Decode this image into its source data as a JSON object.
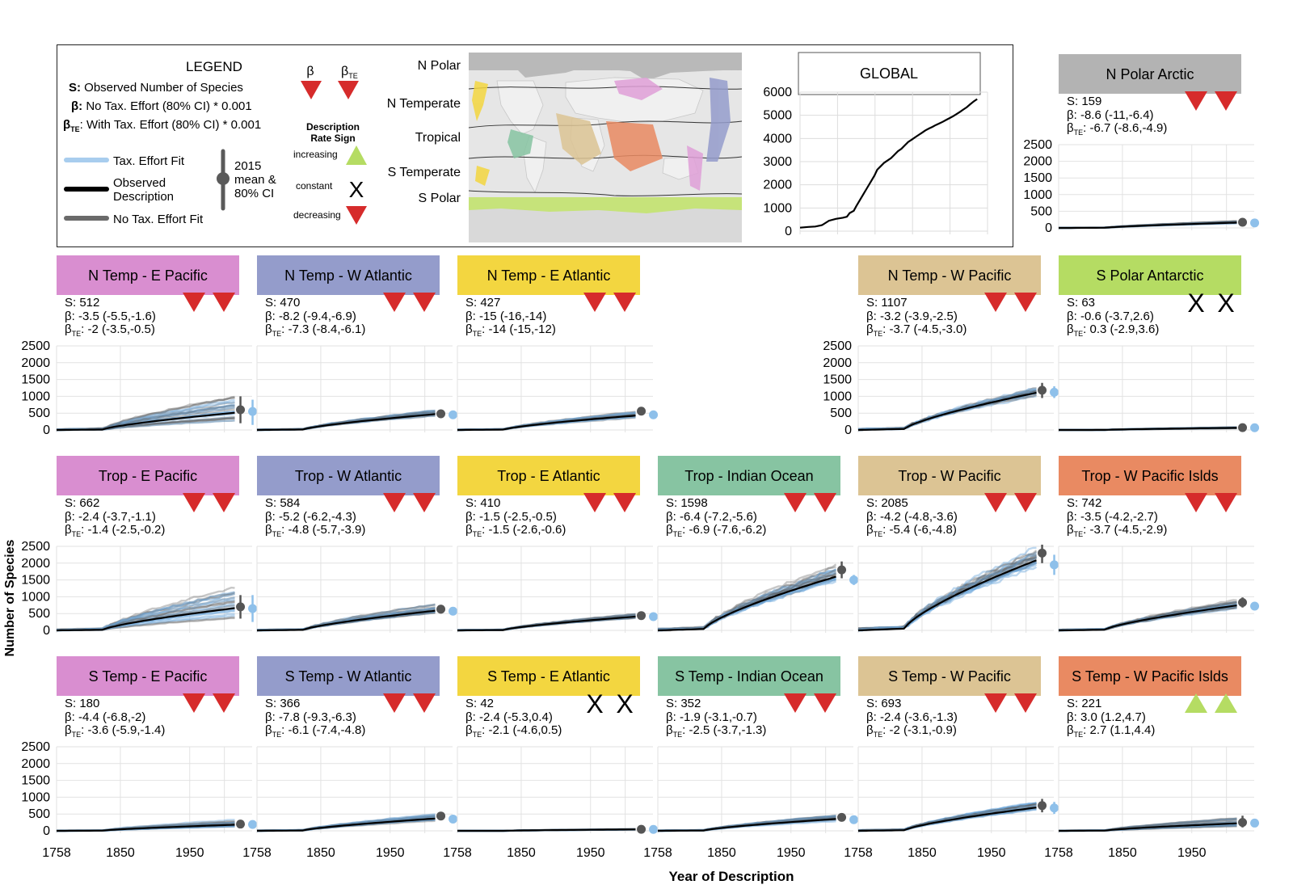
{
  "figure": {
    "ylabel": "Number of Species",
    "xlabel": "Year of Description"
  },
  "legend": {
    "title": "LEGEND",
    "s_prefix": "S:",
    "s_text": " Observed Number of Species",
    "beta_prefix": "β:",
    "beta_text": " No Tax. Effort (80% CI) * 0.001",
    "bte_prefix": "β",
    "bte_sub": "TE",
    "bte_text": ": With Tax. Effort (80% CI) * 0.001",
    "tax_fit": "Tax. Effort Fit",
    "observed_1": "Observed",
    "observed_2": "Description",
    "no_tax_fit": "No Tax. Effort Fit",
    "mean_1": "2015",
    "mean_2": "mean &",
    "mean_3": "80% CI",
    "beta_symbol": "β",
    "bte_symbol": "β",
    "sign_title_1": "Description",
    "sign_title_2": "Rate Sign",
    "increasing": "increasing",
    "constant": "constant",
    "decreasing": "decreasing",
    "constant_mark": "X",
    "colors": {
      "tax_fit": "#a8cdee",
      "observed": "#000000",
      "no_tax_fit": "#6a6a6a"
    }
  },
  "map": {
    "labels": [
      "N Polar",
      "N Temperate",
      "Tropical",
      "S Temperate",
      "S Polar"
    ]
  },
  "global": {
    "title": "GLOBAL",
    "chart_data": {
      "type": "line",
      "ylim": [
        0,
        6000
      ],
      "yticks": [
        0,
        1000,
        2000,
        3000,
        4000,
        5000,
        6000
      ],
      "x": [
        1758,
        1770,
        1780,
        1790,
        1800,
        1810,
        1820,
        1826,
        1830,
        1836,
        1840,
        1845,
        1850,
        1855,
        1860,
        1866,
        1870,
        1875,
        1880,
        1885,
        1890,
        1895,
        1900,
        1905,
        1910,
        1915,
        1920,
        1925,
        1930,
        1935,
        1940,
        1945,
        1950,
        1955,
        1960,
        1965,
        1970,
        1975,
        1980,
        1985,
        1990,
        1995,
        2000,
        2005,
        2010,
        2015
      ],
      "y": [
        150,
        180,
        200,
        260,
        450,
        530,
        580,
        620,
        780,
        880,
        1100,
        1350,
        1600,
        1850,
        2100,
        2400,
        2650,
        2800,
        2950,
        3050,
        3150,
        3300,
        3450,
        3550,
        3700,
        3850,
        3950,
        4050,
        4150,
        4250,
        4350,
        4430,
        4500,
        4580,
        4650,
        4720,
        4800,
        4880,
        4960,
        5050,
        5150,
        5250,
        5350,
        5480,
        5600,
        5700
      ]
    }
  },
  "panel_axes": {
    "x_range": [
      1758,
      2040
    ],
    "x_ticks": [
      1758,
      1850,
      1950
    ],
    "y_range": [
      0,
      2500
    ],
    "y_ticks": [
      0,
      500,
      1000,
      1500,
      2000,
      2500
    ]
  },
  "signs": {
    "decreasing": "#d62b2b",
    "increasing": "#b5dc63"
  },
  "panels": [
    {
      "id": "npolar-arctic",
      "title": "N Polar Arctic",
      "color": "#b3b3b3",
      "row": 0,
      "col": 5,
      "S": "159",
      "beta": "-8.6 (-11,-6.4)",
      "bte": "-6.7 (-8.6,-4.9)",
      "sign": [
        "dec",
        "dec"
      ],
      "obs_final": 159,
      "spread": 0.6,
      "mean": 170,
      "ci": [
        140,
        200
      ],
      "te_mean": 150,
      "te_ci": [
        130,
        170
      ],
      "yaxis": true
    },
    {
      "id": "ntemp-epac",
      "title": "N Temp - E Pacific",
      "color": "#d98ed0",
      "row": 1,
      "col": 0,
      "S": "512",
      "beta": "-3.5 (-5.5,-1.6)",
      "bte": "-2 (-3.5,-0.5)",
      "sign": [
        "dec",
        "dec"
      ],
      "obs_final": 512,
      "spread": 2.5,
      "mean": 600,
      "ci": [
        200,
        1000
      ],
      "te_mean": 550,
      "te_ci": [
        150,
        900
      ],
      "yaxis": true
    },
    {
      "id": "ntemp-watl",
      "title": "N Temp - W Atlantic",
      "color": "#949ccb",
      "row": 1,
      "col": 1,
      "S": "470",
      "beta": "-8.2 (-9.4,-6.9)",
      "bte": "-7.3 (-8.4,-6.1)",
      "sign": [
        "dec",
        "dec"
      ],
      "obs_final": 470,
      "spread": 0.6,
      "mean": 480,
      "ci": [
        380,
        580
      ],
      "te_mean": 450,
      "te_ci": [
        400,
        500
      ],
      "yaxis": false
    },
    {
      "id": "ntemp-eatl",
      "title": "N Temp - E Atlantic",
      "color": "#f3d640",
      "row": 1,
      "col": 2,
      "S": "427",
      "beta": "-15 (-16,-14)",
      "bte": "-14 (-15,-12)",
      "sign": [
        "dec",
        "dec"
      ],
      "obs_final": 427,
      "spread": 0.65,
      "mean": 560,
      "ci": [
        480,
        650
      ],
      "te_mean": 450,
      "te_ci": [
        420,
        480
      ],
      "yaxis": false
    },
    {
      "id": "ntemp-wpac",
      "title": "N Temp - W Pacific",
      "color": "#dcc494",
      "row": 1,
      "col": 4,
      "S": "1107",
      "beta": "-3.2 (-3.9,-2.5)",
      "bte": "-3.7 (-4.5,-3.0)",
      "sign": [
        "dec",
        "dec"
      ],
      "obs_final": 1107,
      "spread": 0.35,
      "mean": 1180,
      "ci": [
        950,
        1400
      ],
      "te_mean": 1120,
      "te_ci": [
        950,
        1300
      ],
      "yaxis": true
    },
    {
      "id": "spolar-ant",
      "title": "S Polar Antarctic",
      "color": "#b5dc63",
      "row": 1,
      "col": 5,
      "S": "63",
      "beta": "-0.6 (-3.7,2.6)",
      "bte": "0.3 (-2.9,3.6)",
      "sign": [
        "con",
        "con"
      ],
      "obs_final": 63,
      "spread": 0.8,
      "mean": 70,
      "ci": [
        55,
        90
      ],
      "te_mean": 65,
      "te_ci": [
        50,
        80
      ],
      "yaxis": false
    },
    {
      "id": "trop-epac",
      "title": "Trop - E Pacific",
      "color": "#d98ed0",
      "row": 2,
      "col": 0,
      "S": "662",
      "beta": "-2.4 (-3.7,-1.1)",
      "bte": "-1.4 (-2.5,-0.2)",
      "sign": [
        "dec",
        "dec"
      ],
      "obs_final": 662,
      "spread": 2.2,
      "mean": 700,
      "ci": [
        350,
        1050
      ],
      "te_mean": 650,
      "te_ci": [
        250,
        1050
      ],
      "yaxis": true
    },
    {
      "id": "trop-watl",
      "title": "Trop - W Atlantic",
      "color": "#949ccb",
      "row": 2,
      "col": 1,
      "S": "584",
      "beta": "-5.2 (-6.2,-4.3)",
      "bte": "-4.8 (-5.7,-3.9)",
      "sign": [
        "dec",
        "dec"
      ],
      "obs_final": 584,
      "spread": 0.6,
      "mean": 630,
      "ci": [
        500,
        760
      ],
      "te_mean": 570,
      "te_ci": [
        480,
        660
      ],
      "yaxis": false
    },
    {
      "id": "trop-eatl",
      "title": "Trop - E Atlantic",
      "color": "#f3d640",
      "row": 2,
      "col": 2,
      "S": "410",
      "beta": "-1.5 (-2.5,-0.5)",
      "bte": "-1.5 (-2.6,-0.6)",
      "sign": [
        "dec",
        "dec"
      ],
      "obs_final": 410,
      "spread": 0.5,
      "mean": 440,
      "ci": [
        370,
        520
      ],
      "te_mean": 410,
      "te_ci": [
        360,
        460
      ],
      "yaxis": false
    },
    {
      "id": "trop-ind",
      "title": "Trop - Indian Ocean",
      "color": "#87c4a2",
      "row": 2,
      "col": 3,
      "S": "1598",
      "beta": "-6.4 (-7.2,-5.6)",
      "bte": "-6.9 (-7.6,-6.2)",
      "sign": [
        "dec",
        "dec"
      ],
      "obs_final": 1598,
      "spread": 0.45,
      "mean": 1800,
      "ci": [
        1550,
        2050
      ],
      "te_mean": 1500,
      "te_ci": [
        1350,
        1650
      ],
      "yaxis": false
    },
    {
      "id": "trop-wpac",
      "title": "Trop - W Pacific",
      "color": "#dcc494",
      "row": 2,
      "col": 4,
      "S": "2085",
      "beta": "-4.2 (-4.8,-3.6)",
      "bte": "-5.4 (-6,-4.8)",
      "sign": [
        "dec",
        "dec"
      ],
      "obs_final": 2085,
      "spread": 0.4,
      "mean": 2300,
      "ci": [
        2000,
        2550
      ],
      "te_mean": 1950,
      "te_ci": [
        1650,
        2250
      ],
      "yaxis": false
    },
    {
      "id": "trop-wpacisl",
      "title": "Trop - W Pacific Islds",
      "color": "#e98a62",
      "row": 2,
      "col": 5,
      "S": "742",
      "beta": "-3.5 (-4.2,-2.7)",
      "bte": "-3.7 (-4.5,-2.9)",
      "sign": [
        "dec",
        "dec"
      ],
      "obs_final": 742,
      "spread": 0.45,
      "mean": 830,
      "ci": [
        680,
        980
      ],
      "te_mean": 720,
      "te_ci": [
        600,
        840
      ],
      "yaxis": false
    },
    {
      "id": "stemp-epac",
      "title": "S Temp - E Pacific",
      "color": "#d98ed0",
      "row": 3,
      "col": 0,
      "S": "180",
      "beta": "-4.4 (-6.8,-2)",
      "bte": "-3.6 (-5.9,-1.4)",
      "sign": [
        "dec",
        "dec"
      ],
      "obs_final": 180,
      "spread": 1.5,
      "mean": 200,
      "ci": [
        100,
        320
      ],
      "te_mean": 190,
      "te_ci": [
        100,
        300
      ],
      "yaxis": true
    },
    {
      "id": "stemp-watl",
      "title": "S Temp - W Atlantic",
      "color": "#949ccb",
      "row": 3,
      "col": 1,
      "S": "366",
      "beta": "-7.8 (-9.3,-6.3)",
      "bte": "-6.1 (-7.4,-4.8)",
      "sign": [
        "dec",
        "dec"
      ],
      "obs_final": 366,
      "spread": 0.7,
      "mean": 440,
      "ci": [
        330,
        560
      ],
      "te_mean": 350,
      "te_ci": [
        280,
        430
      ],
      "yaxis": false
    },
    {
      "id": "stemp-eatl",
      "title": "S Temp - E Atlantic",
      "color": "#f3d640",
      "row": 3,
      "col": 2,
      "S": "42",
      "beta": "-2.4 (-5.3,0.4)",
      "bte": "-2.1 (-4.6,0.5)",
      "sign": [
        "con",
        "con"
      ],
      "obs_final": 42,
      "spread": 0.5,
      "mean": 45,
      "ci": [
        30,
        60
      ],
      "te_mean": 42,
      "te_ci": [
        30,
        55
      ],
      "yaxis": false
    },
    {
      "id": "stemp-ind",
      "title": "S Temp - Indian Ocean",
      "color": "#87c4a2",
      "row": 3,
      "col": 3,
      "S": "352",
      "beta": "-1.9 (-3.1,-0.7)",
      "bte": "-2.5 (-3.7,-1.3)",
      "sign": [
        "dec",
        "dec"
      ],
      "obs_final": 352,
      "spread": 0.7,
      "mean": 400,
      "ci": [
        320,
        480
      ],
      "te_mean": 330,
      "te_ci": [
        280,
        380
      ],
      "yaxis": false
    },
    {
      "id": "stemp-wpac",
      "title": "S Temp - W Pacific",
      "color": "#dcc494",
      "row": 3,
      "col": 4,
      "S": "693",
      "beta": "-2.4 (-3.6,-1.3)",
      "bte": "-2 (-3.1,-0.9)",
      "sign": [
        "dec",
        "dec"
      ],
      "obs_final": 693,
      "spread": 0.6,
      "mean": 750,
      "ci": [
        550,
        950
      ],
      "te_mean": 680,
      "te_ci": [
        500,
        860
      ],
      "yaxis": false
    },
    {
      "id": "stemp-wpacisl",
      "title": "S Temp - W Pacific Islds",
      "color": "#e98a62",
      "row": 3,
      "col": 5,
      "S": "221",
      "beta": "3.0 (1.2,4.7)",
      "bte": "2.7 (1.1,4.4)",
      "sign": [
        "inc",
        "inc"
      ],
      "obs_final": 221,
      "spread": 2.0,
      "mean": 250,
      "ci": [
        100,
        450
      ],
      "te_mean": 230,
      "te_ci": [
        120,
        350
      ],
      "yaxis": false
    }
  ]
}
